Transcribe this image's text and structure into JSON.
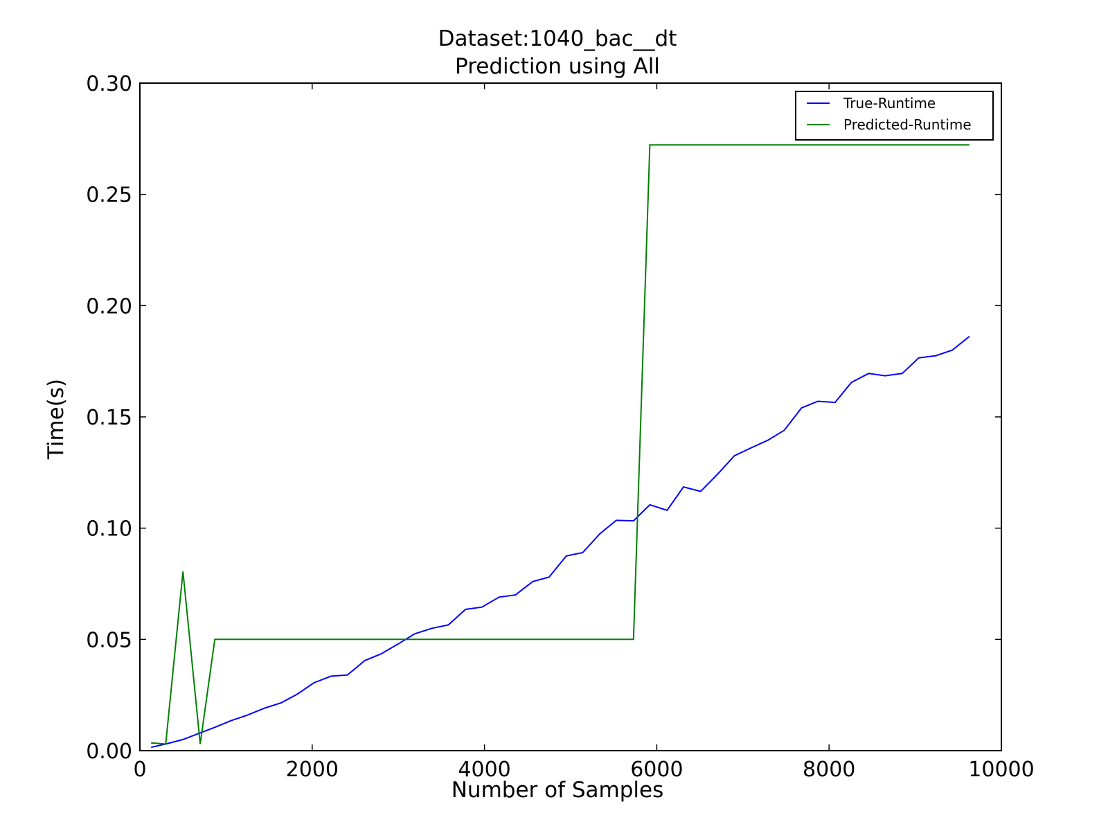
{
  "chart_data": {
    "type": "line",
    "title": [
      "Dataset:1040_bac__dt",
      "Prediction using All"
    ],
    "xlabel": "Number of Samples",
    "ylabel": "Time(s)",
    "xlim": [
      0,
      10000
    ],
    "ylim": [
      0.0,
      0.3
    ],
    "xticks": [
      0,
      2000,
      4000,
      6000,
      8000,
      10000
    ],
    "xtick_labels": [
      "0",
      "2000",
      "4000",
      "6000",
      "8000",
      "10000"
    ],
    "yticks": [
      0.0,
      0.05,
      0.1,
      0.15,
      0.2,
      0.25,
      0.3
    ],
    "ytick_labels": [
      "0.00",
      "0.05",
      "0.10",
      "0.15",
      "0.20",
      "0.25",
      "0.30"
    ],
    "grid": false,
    "legend_position": "top-right",
    "x": [
      130,
      300,
      500,
      700,
      870,
      1060,
      1250,
      1440,
      1640,
      1830,
      2020,
      2220,
      2410,
      2610,
      2800,
      3000,
      3190,
      3390,
      3580,
      3780,
      3970,
      4170,
      4360,
      4560,
      4750,
      4950,
      5140,
      5340,
      5530,
      5730,
      5920,
      6120,
      6310,
      6510,
      6700,
      6900,
      7090,
      7290,
      7480,
      7680,
      7870,
      8070,
      8260,
      8460,
      8650,
      8850,
      9040,
      9240,
      9430,
      9630
    ],
    "series": [
      {
        "name": "True-Runtime",
        "color": "#0000ff",
        "values": [
          0.0015,
          0.003,
          0.005,
          0.008,
          0.0105,
          0.0135,
          0.016,
          0.019,
          0.0215,
          0.0255,
          0.0305,
          0.0335,
          0.034,
          0.0405,
          0.0435,
          0.048,
          0.0525,
          0.055,
          0.0565,
          0.0635,
          0.0645,
          0.069,
          0.07,
          0.076,
          0.078,
          0.0875,
          0.089,
          0.0975,
          0.1035,
          0.1033,
          0.1105,
          0.108,
          0.1185,
          0.1165,
          0.124,
          0.1325,
          0.136,
          0.1395,
          0.144,
          0.154,
          0.157,
          0.1565,
          0.1655,
          0.1695,
          0.1685,
          0.1695,
          0.1765,
          0.1775,
          0.18,
          0.1862
        ]
      },
      {
        "name": "Predicted-Runtime",
        "color": "#008000",
        "values": [
          0.0035,
          0.003,
          0.0805,
          0.003,
          0.05,
          0.05,
          0.05,
          0.05,
          0.05,
          0.05,
          0.05,
          0.05,
          0.05,
          0.05,
          0.05,
          0.05,
          0.05,
          0.05,
          0.05,
          0.05,
          0.05,
          0.05,
          0.05,
          0.05,
          0.05,
          0.05,
          0.05,
          0.05,
          0.05,
          0.05,
          0.2722,
          0.2722,
          0.2722,
          0.2722,
          0.2722,
          0.2722,
          0.2722,
          0.2722,
          0.2722,
          0.2722,
          0.2722,
          0.2722,
          0.2722,
          0.2722,
          0.2722,
          0.2722,
          0.2722,
          0.2722,
          0.2722,
          0.2722
        ]
      }
    ]
  }
}
